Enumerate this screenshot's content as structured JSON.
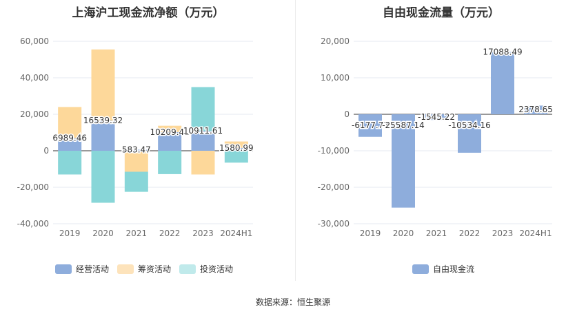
{
  "source_text": "数据来源：恒生聚源",
  "colors": {
    "operating": "#8eaddc",
    "financing": "#fdd89a",
    "investing": "#88d6d8",
    "fcf": "#8eaddc",
    "financing_legend": "#fde3bb",
    "investing_legend": "#c0eaeb",
    "axis_text": "#666666",
    "grid": "#e6e9f0"
  },
  "chart_data": [
    {
      "type": "bar",
      "stacked": true,
      "title": "上海沪工现金流净额（万元）",
      "categories": [
        "2019",
        "2020",
        "2021",
        "2022",
        "2023",
        "2024H1"
      ],
      "ylim": [
        -40000,
        60000
      ],
      "yticks": [
        -40000,
        -20000,
        0,
        20000,
        40000,
        60000
      ],
      "ytick_labels": [
        "-40,000",
        "-20,000",
        "0",
        "20,000",
        "40,000",
        "60,000"
      ],
      "series": [
        {
          "name": "经营活动",
          "key": "operating",
          "values": [
            6989.46,
            16539.32,
            583.47,
            10209.41,
            10911.61,
            1580.99
          ],
          "labels": [
            "6989.46",
            "16539.32",
            "583.47",
            "10209.41",
            "10911.61",
            "1580.99"
          ]
        },
        {
          "name": "筹资活动",
          "key": "financing",
          "values": [
            17000,
            39000,
            -11500,
            3500,
            -13000,
            3500
          ]
        },
        {
          "name": "投资活动",
          "key": "investing",
          "values": [
            -13000,
            -28500,
            -11000,
            -12800,
            24000,
            -6500
          ]
        }
      ]
    },
    {
      "type": "bar",
      "title": "自由现金流量（万元）",
      "categories": [
        "2019",
        "2020",
        "2021",
        "2022",
        "2023",
        "2024H1"
      ],
      "ylim": [
        -30000,
        20000
      ],
      "yticks": [
        -30000,
        -20000,
        -10000,
        0,
        10000,
        20000
      ],
      "ytick_labels": [
        "-30,000",
        "-20,000",
        "-10,000",
        "0",
        "10,000",
        "20,000"
      ],
      "series": [
        {
          "name": "自由现金流",
          "key": "fcf",
          "values": [
            -6177.77,
            -25587.14,
            -1545.22,
            -10534.16,
            17088.49,
            2378.65
          ],
          "labels": [
            "-6177.77",
            "-25587.14",
            "-1545.22",
            "-10534.16",
            "17088.49",
            "2378.65"
          ]
        }
      ]
    }
  ]
}
